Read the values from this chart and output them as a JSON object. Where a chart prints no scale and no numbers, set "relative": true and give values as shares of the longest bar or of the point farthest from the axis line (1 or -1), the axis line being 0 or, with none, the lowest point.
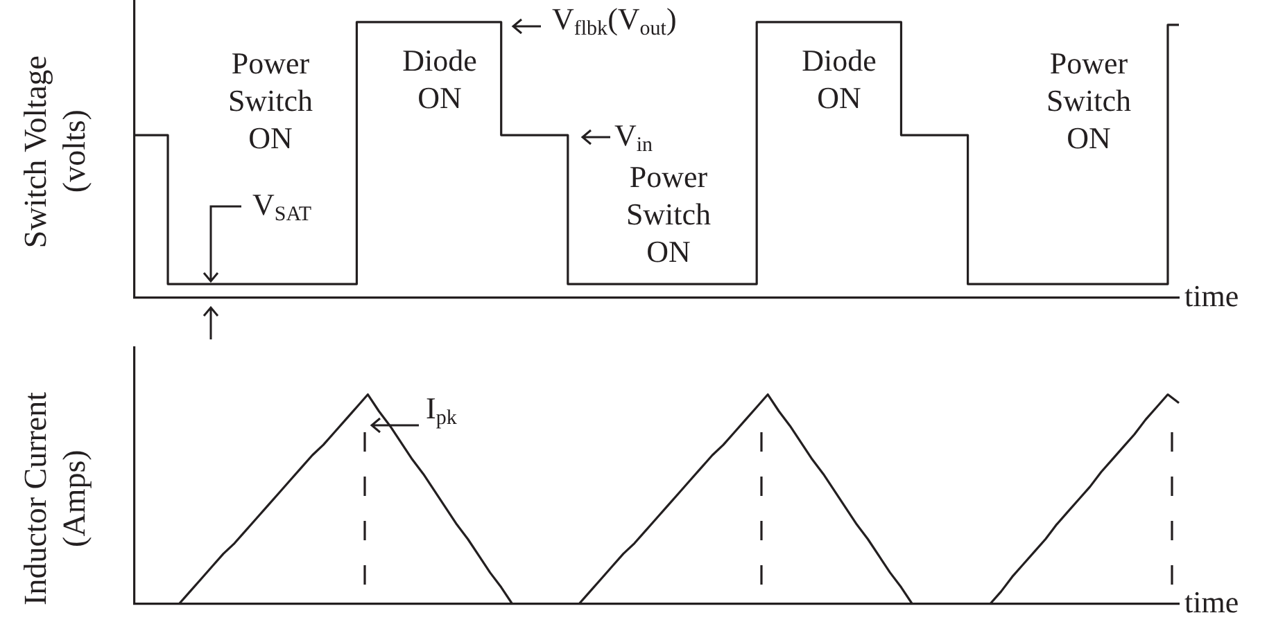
{
  "chart_data": [
    {
      "type": "step",
      "ylabel": "Switch Voltage\n(volts)",
      "xlabel": "time",
      "relative": true,
      "grid": false,
      "legend": false,
      "categories": [
        null,
        null,
        null,
        null,
        null,
        null,
        null,
        null,
        null,
        null,
        null,
        null,
        null,
        null,
        null,
        null,
        null,
        null,
        null,
        null,
        null,
        null,
        null,
        null,
        null,
        null,
        null,
        null,
        null,
        null,
        null,
        null,
        null,
        null,
        null,
        null,
        null,
        null,
        null,
        null,
        null,
        null,
        null,
        null,
        null,
        null,
        null,
        null,
        null,
        null,
        null,
        null,
        null,
        null,
        null,
        null,
        null,
        null,
        null,
        null,
        null,
        null,
        null,
        null,
        null,
        null,
        null,
        null,
        null,
        null,
        null,
        null,
        null,
        null,
        null,
        null,
        null,
        null,
        null,
        null,
        null,
        null,
        null,
        null,
        null,
        null,
        null,
        null,
        null,
        null,
        null,
        null,
        null,
        null,
        null
      ],
      "series": [
        {
          "color": "#231f20",
          "values": [
            0.59,
            0.59,
            0.59,
            0.59,
            0.05,
            0.05,
            0.05,
            0.05,
            0.05,
            0.05,
            0.05,
            0.05,
            0.05,
            0.05,
            0.05,
            0.05,
            0.05,
            0.05,
            0.05,
            0.05,
            0.05,
            1,
            1,
            1,
            1,
            1,
            1,
            1,
            1,
            1,
            1,
            1,
            1,
            1,
            0.59,
            0.59,
            0.59,
            0.59,
            0.59,
            0.59,
            0.05,
            0.05,
            0.05,
            0.05,
            0.05,
            0.05,
            0.05,
            0.05,
            0.05,
            0.05,
            0.05,
            0.05,
            0.05,
            0.05,
            0.05,
            0.05,
            0.05,
            1,
            1,
            1,
            1,
            1,
            1,
            1,
            1,
            1,
            1,
            1,
            1,
            1,
            0.59,
            0.59,
            0.59,
            0.59,
            0.59,
            0.59,
            0.05,
            0.05,
            0.05,
            0.05,
            0.05,
            0.05,
            0.05,
            0.05,
            0.05,
            0.05,
            0.05,
            0.05,
            0.05,
            0.05,
            0.05,
            0.05,
            0.05,
            0.05,
            0.99
          ]
        }
      ],
      "annotations": [
        "Power\nSwitch\nON",
        "Diode\nON",
        "V$_{flbk}$(V$_{out}$)",
        "V$_{in}$",
        "Power\nSwitch\nON",
        "V$_{SAT}$",
        "Diode\nON",
        "Power\nSwitch\nON"
      ]
    },
    {
      "type": "line",
      "ylabel": "Inductor Current\n(Amps)",
      "xlabel": "time",
      "relative": true,
      "grid": false,
      "legend": false,
      "categories": [
        null,
        null,
        null,
        null,
        null,
        null,
        null,
        null,
        null,
        null,
        null,
        null,
        null,
        null,
        null,
        null,
        null,
        null,
        null,
        null,
        null,
        null,
        null,
        null,
        null,
        null,
        null,
        null,
        null,
        null,
        null,
        null,
        null,
        null,
        null,
        null,
        null,
        null,
        null,
        null,
        null,
        null,
        null,
        null,
        null,
        null,
        null,
        null,
        null,
        null,
        null,
        null,
        null,
        null,
        null,
        null,
        null,
        null,
        null,
        null,
        null,
        null,
        null,
        null,
        null,
        null,
        null,
        null,
        null,
        null,
        null,
        null,
        null,
        null,
        null,
        null,
        null,
        null,
        null,
        null,
        null,
        null,
        null,
        null,
        null,
        null,
        null,
        null,
        null,
        null,
        null,
        null,
        null,
        null,
        null
      ],
      "series": [
        {
          "color": "#231f20",
          "values": [
            0,
            0,
            0,
            0,
            0,
            0.06,
            0.12,
            0.18,
            0.24,
            0.29,
            0.35,
            0.41,
            0.47,
            0.53,
            0.59,
            0.65,
            0.71,
            0.76,
            0.82,
            0.88,
            0.94,
            1,
            0.92,
            0.85,
            0.77,
            0.69,
            0.62,
            0.54,
            0.46,
            0.38,
            0.31,
            0.23,
            0.15,
            0.08,
            0,
            0,
            0,
            0,
            0,
            0,
            0,
            0.06,
            0.12,
            0.18,
            0.24,
            0.29,
            0.35,
            0.41,
            0.47,
            0.53,
            0.59,
            0.65,
            0.71,
            0.76,
            0.82,
            0.88,
            0.94,
            1,
            0.92,
            0.85,
            0.77,
            0.69,
            0.62,
            0.54,
            0.46,
            0.38,
            0.31,
            0.23,
            0.15,
            0.08,
            0,
            0,
            0,
            0,
            0,
            0,
            0,
            0,
            0.06,
            0.13,
            0.19,
            0.25,
            0.31,
            0.38,
            0.44,
            0.5,
            0.56,
            0.63,
            0.69,
            0.75,
            0.81,
            0.88,
            0.94,
            1,
            0.96
          ]
        }
      ],
      "annotations": [
        "I$_{pk}$"
      ]
    }
  ]
}
